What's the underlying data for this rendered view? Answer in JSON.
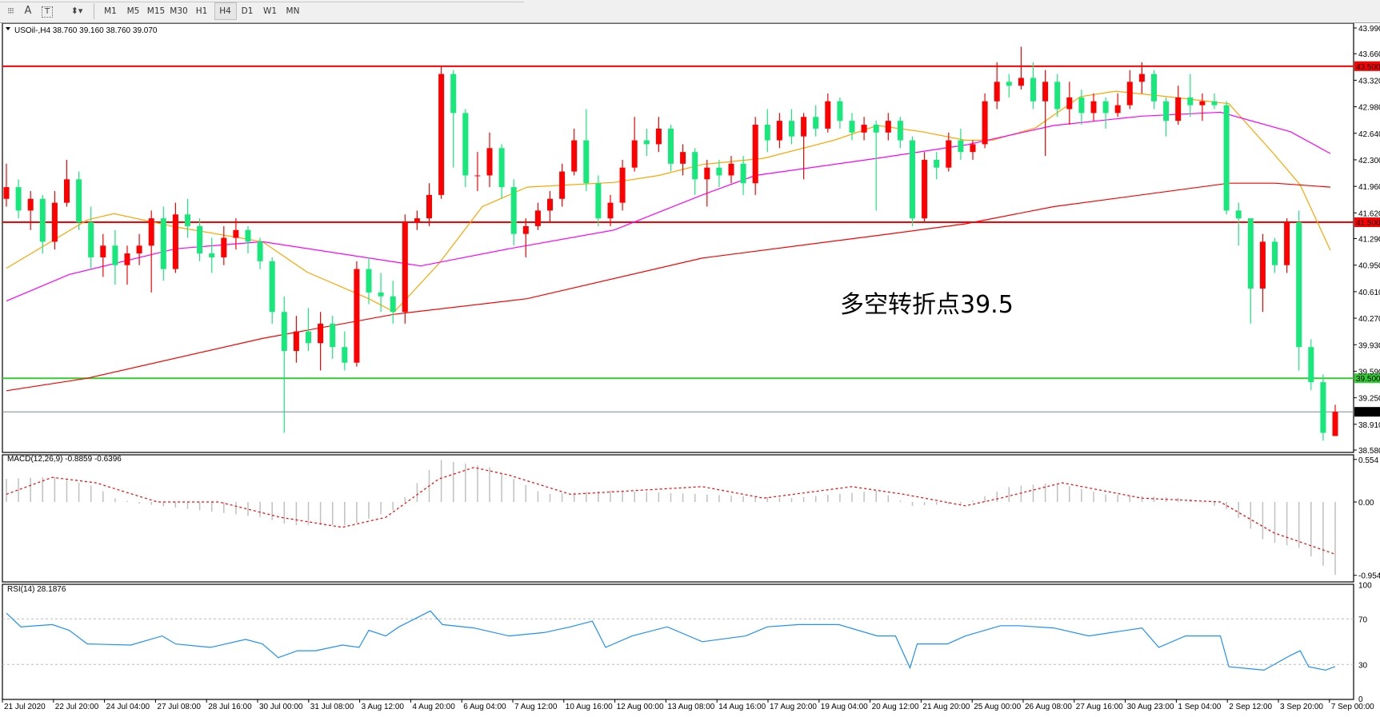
{
  "toolbar": {
    "icons": [
      "grid-icon",
      "text-a-icon",
      "text-label-icon",
      "arrows-icon"
    ],
    "timeframes": [
      "M1",
      "M5",
      "M15",
      "M30",
      "H1",
      "H4",
      "D1",
      "W1",
      "MN"
    ],
    "active_timeframe": "H4"
  },
  "main": {
    "title": "USOil-,H4  38.760 39.160 38.760 39.070",
    "annotation": "多空转折点39.5",
    "annotation_color": "#e8141e",
    "up_color": "#ff0000",
    "down_color": "#17e87c",
    "price_ticks": [
      "43.990",
      "43.660",
      "43.320",
      "42.980",
      "42.640",
      "42.300",
      "41.960",
      "41.620",
      "41.290",
      "40.950",
      "40.610",
      "40.270",
      "39.930",
      "39.590",
      "39.250",
      "38.910",
      "38.580"
    ],
    "hlines": [
      {
        "price": 43.5,
        "label": "43.500",
        "color": "#ff0000"
      },
      {
        "price": 41.5,
        "label": "41.500",
        "color": "#ff0000"
      },
      {
        "price": 39.5,
        "label": "39.500",
        "color": "#33cc33"
      },
      {
        "price": 39.07,
        "label": "39.070",
        "color": "#778899"
      }
    ]
  },
  "macd": {
    "title": "MACD(12,26,9) -0.8859 -0.6396",
    "ticks": [
      "0.554",
      "0.00",
      "-0.9545"
    ]
  },
  "rsi": {
    "title": "RSI(14) 28.1876",
    "ticks": [
      "100",
      "70",
      "30",
      "0"
    ]
  },
  "time_labels": [
    "21 Jul 2020",
    "22 Jul 20:00",
    "24 Jul 04:00",
    "27 Jul 08:00",
    "28 Jul 16:00",
    "30 Jul 00:00",
    "31 Jul 08:00",
    "3 Aug 12:00",
    "4 Aug 20:00",
    "6 Aug 04:00",
    "7 Aug 12:00",
    "10 Aug 16:00",
    "12 Aug 00:00",
    "13 Aug 08:00",
    "14 Aug 16:00",
    "17 Aug 20:00",
    "19 Aug 04:00",
    "20 Aug 12:00",
    "21 Aug 20:00",
    "25 Aug 00:00",
    "26 Aug 08:00",
    "27 Aug 16:00",
    "30 Aug 23:00",
    "1 Sep 04:00",
    "2 Sep 12:00",
    "3 Sep 20:00",
    "7 Sep 00:00"
  ],
  "chart_data": {
    "type": "candlestick",
    "symbol": "USOil-",
    "timeframe": "H4",
    "ylim": [
      38.58,
      43.99
    ],
    "ohlc": [
      [
        41.8,
        42.25,
        41.7,
        41.95
      ],
      [
        41.95,
        42.05,
        41.55,
        41.65
      ],
      [
        41.65,
        41.9,
        41.4,
        41.8
      ],
      [
        41.8,
        41.85,
        41.1,
        41.25
      ],
      [
        41.25,
        41.9,
        41.15,
        41.75
      ],
      [
        41.75,
        42.3,
        41.7,
        42.05
      ],
      [
        42.05,
        42.15,
        41.4,
        41.5
      ],
      [
        41.5,
        41.7,
        40.9,
        41.05
      ],
      [
        41.05,
        41.35,
        40.8,
        41.2
      ],
      [
        41.2,
        41.4,
        40.7,
        40.95
      ],
      [
        40.95,
        41.2,
        40.7,
        41.1
      ],
      [
        41.1,
        41.35,
        40.95,
        41.2
      ],
      [
        41.2,
        41.65,
        40.6,
        41.55
      ],
      [
        41.55,
        41.7,
        40.75,
        40.9
      ],
      [
        40.9,
        41.75,
        40.85,
        41.6
      ],
      [
        41.6,
        41.8,
        41.3,
        41.45
      ],
      [
        41.45,
        41.55,
        41.0,
        41.1
      ],
      [
        41.1,
        41.3,
        40.85,
        41.05
      ],
      [
        41.05,
        41.45,
        40.95,
        41.3
      ],
      [
        41.3,
        41.55,
        41.15,
        41.4
      ],
      [
        41.4,
        41.45,
        41.1,
        41.25
      ],
      [
        41.25,
        41.3,
        40.9,
        41.0
      ],
      [
        41.0,
        41.05,
        40.2,
        40.35
      ],
      [
        40.35,
        40.55,
        38.8,
        39.85
      ],
      [
        39.85,
        40.3,
        39.7,
        40.1
      ],
      [
        40.1,
        40.4,
        39.85,
        39.95
      ],
      [
        39.95,
        40.35,
        39.6,
        40.2
      ],
      [
        40.2,
        40.3,
        39.75,
        39.9
      ],
      [
        39.9,
        40.1,
        39.6,
        39.7
      ],
      [
        39.7,
        41.0,
        39.65,
        40.9
      ],
      [
        40.9,
        41.05,
        40.45,
        40.6
      ],
      [
        40.6,
        40.85,
        40.35,
        40.55
      ],
      [
        40.55,
        40.75,
        40.2,
        40.35
      ],
      [
        40.35,
        41.6,
        40.2,
        41.5
      ],
      [
        41.5,
        41.65,
        41.4,
        41.55
      ],
      [
        41.55,
        42.0,
        41.45,
        41.85
      ],
      [
        41.85,
        43.5,
        41.8,
        43.4
      ],
      [
        43.4,
        43.45,
        42.2,
        42.9
      ],
      [
        42.9,
        42.95,
        41.95,
        42.1
      ],
      [
        42.1,
        42.4,
        41.9,
        42.1
      ],
      [
        42.1,
        42.65,
        41.95,
        42.45
      ],
      [
        42.45,
        42.5,
        41.8,
        41.95
      ],
      [
        41.95,
        42.05,
        41.2,
        41.35
      ],
      [
        41.35,
        41.55,
        41.05,
        41.45
      ],
      [
        41.45,
        41.75,
        41.4,
        41.65
      ],
      [
        41.65,
        41.9,
        41.5,
        41.8
      ],
      [
        41.8,
        42.25,
        41.7,
        42.15
      ],
      [
        42.15,
        42.7,
        42.1,
        42.55
      ],
      [
        42.55,
        42.95,
        41.9,
        42.0
      ],
      [
        42.0,
        42.1,
        41.45,
        41.55
      ],
      [
        41.55,
        41.85,
        41.45,
        41.75
      ],
      [
        41.75,
        42.3,
        41.65,
        42.2
      ],
      [
        42.2,
        42.85,
        42.15,
        42.55
      ],
      [
        42.55,
        42.7,
        42.35,
        42.5
      ],
      [
        42.5,
        42.85,
        42.4,
        42.7
      ],
      [
        42.7,
        42.75,
        42.15,
        42.25
      ],
      [
        42.25,
        42.5,
        42.1,
        42.4
      ],
      [
        42.4,
        42.45,
        41.85,
        42.05
      ],
      [
        42.05,
        42.3,
        41.7,
        42.2
      ],
      [
        42.2,
        42.3,
        41.95,
        42.1
      ],
      [
        42.1,
        42.35,
        42.0,
        42.25
      ],
      [
        42.25,
        42.35,
        41.85,
        42.0
      ],
      [
        42.0,
        42.85,
        41.85,
        42.75
      ],
      [
        42.75,
        42.95,
        42.4,
        42.55
      ],
      [
        42.55,
        42.9,
        42.45,
        42.8
      ],
      [
        42.8,
        42.95,
        42.5,
        42.6
      ],
      [
        42.6,
        42.9,
        42.05,
        42.85
      ],
      [
        42.85,
        43.0,
        42.6,
        42.7
      ],
      [
        42.7,
        43.15,
        42.65,
        43.05
      ],
      [
        43.05,
        43.1,
        42.7,
        42.8
      ],
      [
        42.8,
        42.9,
        42.55,
        42.65
      ],
      [
        42.65,
        42.85,
        42.55,
        42.75
      ],
      [
        42.75,
        42.8,
        41.65,
        42.65
      ],
      [
        42.65,
        42.9,
        42.55,
        42.8
      ],
      [
        42.8,
        42.85,
        42.45,
        42.55
      ],
      [
        42.55,
        42.6,
        41.45,
        41.55
      ],
      [
        41.55,
        42.4,
        41.5,
        42.3
      ],
      [
        42.3,
        42.4,
        42.05,
        42.2
      ],
      [
        42.2,
        42.65,
        42.15,
        42.55
      ],
      [
        42.55,
        42.7,
        42.3,
        42.4
      ],
      [
        42.4,
        42.55,
        42.3,
        42.5
      ],
      [
        42.5,
        43.15,
        42.45,
        43.05
      ],
      [
        43.05,
        43.55,
        42.95,
        43.3
      ],
      [
        43.3,
        43.4,
        43.1,
        43.25
      ],
      [
        43.25,
        43.75,
        43.2,
        43.35
      ],
      [
        43.35,
        43.55,
        42.95,
        43.05
      ],
      [
        43.05,
        43.45,
        42.35,
        43.3
      ],
      [
        43.3,
        43.4,
        42.85,
        42.95
      ],
      [
        42.95,
        43.3,
        42.75,
        43.1
      ],
      [
        43.1,
        43.2,
        42.75,
        42.9
      ],
      [
        42.9,
        43.15,
        42.8,
        43.05
      ],
      [
        43.05,
        43.1,
        42.7,
        42.9
      ],
      [
        42.9,
        43.15,
        42.85,
        43.0
      ],
      [
        43.0,
        43.45,
        42.95,
        43.3
      ],
      [
        43.3,
        43.55,
        43.15,
        43.4
      ],
      [
        43.4,
        43.45,
        42.95,
        43.05
      ],
      [
        43.05,
        43.1,
        42.6,
        42.8
      ],
      [
        42.8,
        43.25,
        42.75,
        43.1
      ],
      [
        43.1,
        43.4,
        42.85,
        43.0
      ],
      [
        43.0,
        43.15,
        42.8,
        43.05
      ],
      [
        43.05,
        43.15,
        42.95,
        43.0
      ],
      [
        43.0,
        43.05,
        41.6,
        41.65
      ],
      [
        41.65,
        41.75,
        41.2,
        41.55
      ],
      [
        41.55,
        41.55,
        40.2,
        40.65
      ],
      [
        40.65,
        41.35,
        40.35,
        41.25
      ],
      [
        41.25,
        41.3,
        40.85,
        40.95
      ],
      [
        40.95,
        41.55,
        40.85,
        41.5
      ],
      [
        41.5,
        41.65,
        39.6,
        39.9
      ],
      [
        39.9,
        40.0,
        39.35,
        39.45
      ],
      [
        39.45,
        39.55,
        38.7,
        38.8
      ],
      [
        38.76,
        39.16,
        38.76,
        39.07
      ]
    ],
    "moving_averages": [
      {
        "color": "#ffa500",
        "points": [
          [
            0,
            40.91
          ],
          [
            6.7,
            41.53
          ],
          [
            8.9,
            41.61
          ],
          [
            14,
            41.44
          ],
          [
            21.2,
            41.25
          ],
          [
            24.9,
            40.86
          ],
          [
            30,
            40.52
          ],
          [
            32.1,
            40.35
          ],
          [
            35.8,
            40.97
          ],
          [
            39.4,
            41.7
          ],
          [
            43.1,
            41.95
          ],
          [
            50.3,
            42.01
          ],
          [
            54,
            42.1
          ],
          [
            57.6,
            42.24
          ],
          [
            62.7,
            42.32
          ],
          [
            68.5,
            42.55
          ],
          [
            72.1,
            42.74
          ],
          [
            75.8,
            42.66
          ],
          [
            79.4,
            42.55
          ],
          [
            81.6,
            42.55
          ],
          [
            85.2,
            42.71
          ],
          [
            88.9,
            43.11
          ],
          [
            91.8,
            43.18
          ],
          [
            96.1,
            43.11
          ],
          [
            101.2,
            43.02
          ],
          [
            104.9,
            42.38
          ],
          [
            107.1,
            41.98
          ],
          [
            109.6,
            41.14
          ]
        ]
      },
      {
        "color": "#ff00ff",
        "points": [
          [
            0,
            40.49
          ],
          [
            5.2,
            40.83
          ],
          [
            14,
            41.16
          ],
          [
            21.2,
            41.25
          ],
          [
            34.3,
            40.94
          ],
          [
            41.6,
            41.16
          ],
          [
            50.3,
            41.4
          ],
          [
            57.6,
            41.85
          ],
          [
            62,
            42.1
          ],
          [
            72.1,
            42.32
          ],
          [
            79.4,
            42.49
          ],
          [
            86.7,
            42.74
          ],
          [
            94,
            42.86
          ],
          [
            100.5,
            42.91
          ],
          [
            106.3,
            42.66
          ],
          [
            109.6,
            42.38
          ]
        ]
      },
      {
        "color": "#ff0000",
        "points": [
          [
            0,
            39.34
          ],
          [
            6.7,
            39.5
          ],
          [
            21.2,
            40.01
          ],
          [
            32.1,
            40.32
          ],
          [
            43.1,
            40.52
          ],
          [
            57.6,
            41.04
          ],
          [
            72.1,
            41.33
          ],
          [
            79.4,
            41.48
          ],
          [
            86.7,
            41.7
          ],
          [
            101.2,
            42.0
          ],
          [
            105,
            42.0
          ],
          [
            109.6,
            41.95
          ]
        ]
      }
    ],
    "macd": {
      "ylim": [
        -0.9545,
        0.554
      ],
      "histogram": [
        [
          0,
          0.3
        ],
        [
          3.8,
          0.33
        ],
        [
          7.4,
          0.2
        ],
        [
          8.9,
          0.05
        ],
        [
          11,
          -0.02
        ],
        [
          21.2,
          -0.2
        ],
        [
          23.4,
          -0.3
        ],
        [
          28.5,
          -0.3
        ],
        [
          32.1,
          -0.1
        ],
        [
          34.3,
          0.3
        ],
        [
          35.8,
          0.55
        ],
        [
          40.1,
          0.45
        ],
        [
          44.5,
          0.1
        ],
        [
          50.3,
          0.15
        ],
        [
          57.6,
          0.1
        ],
        [
          64.9,
          0.05
        ],
        [
          72.1,
          0.15
        ],
        [
          75,
          -0.05
        ],
        [
          79.4,
          -0.02
        ],
        [
          83.1,
          0.2
        ],
        [
          86.7,
          0.25
        ],
        [
          91,
          0.1
        ],
        [
          97.6,
          0.05
        ],
        [
          101.2,
          -0.1
        ],
        [
          104.1,
          -0.5
        ],
        [
          107.1,
          -0.6
        ],
        [
          110,
          -0.95
        ]
      ],
      "signal": [
        [
          0,
          0.1
        ],
        [
          3.8,
          0.32
        ],
        [
          7.4,
          0.25
        ],
        [
          12.5,
          0.0
        ],
        [
          17.6,
          0.0
        ],
        [
          22.7,
          -0.2
        ],
        [
          27.8,
          -0.33
        ],
        [
          31.4,
          -0.2
        ],
        [
          35.8,
          0.3
        ],
        [
          38.7,
          0.45
        ],
        [
          41.6,
          0.35
        ],
        [
          46.7,
          0.1
        ],
        [
          57.6,
          0.2
        ],
        [
          62.7,
          0.05
        ],
        [
          70,
          0.2
        ],
        [
          74.3,
          0.1
        ],
        [
          79.4,
          -0.05
        ],
        [
          82.3,
          0.05
        ],
        [
          87.4,
          0.25
        ],
        [
          94,
          0.05
        ],
        [
          100.5,
          0.0
        ],
        [
          104.9,
          -0.4
        ],
        [
          110,
          -0.68
        ]
      ],
      "hist_color": "#c0c0c0",
      "signal_color": "#ff0000"
    },
    "rsi": {
      "ylim": [
        0,
        100
      ],
      "levels": [
        70,
        30
      ],
      "color": "#1e90ff",
      "points": [
        [
          0,
          75
        ],
        [
          1.2,
          63
        ],
        [
          3.8,
          65
        ],
        [
          5.2,
          60
        ],
        [
          6.7,
          48
        ],
        [
          10.3,
          47
        ],
        [
          12.9,
          55
        ],
        [
          14,
          48
        ],
        [
          16.9,
          45
        ],
        [
          19.8,
          52
        ],
        [
          21.2,
          48
        ],
        [
          22.5,
          36
        ],
        [
          24.1,
          42
        ],
        [
          25.6,
          42
        ],
        [
          27.8,
          47
        ],
        [
          29.2,
          45
        ],
        [
          30,
          60
        ],
        [
          31.4,
          55
        ],
        [
          32.5,
          63
        ],
        [
          35.1,
          77
        ],
        [
          36.1,
          65
        ],
        [
          38.7,
          62
        ],
        [
          41.6,
          55
        ],
        [
          44.5,
          58
        ],
        [
          46.7,
          63
        ],
        [
          48.5,
          68
        ],
        [
          49.6,
          45
        ],
        [
          51.8,
          55
        ],
        [
          54.7,
          63
        ],
        [
          57.6,
          50
        ],
        [
          61.2,
          55
        ],
        [
          63,
          63
        ],
        [
          65.6,
          65
        ],
        [
          68.9,
          65
        ],
        [
          72.1,
          55
        ],
        [
          73.6,
          55
        ],
        [
          74.8,
          27
        ],
        [
          75.4,
          48
        ],
        [
          77.9,
          48
        ],
        [
          79.4,
          55
        ],
        [
          82.3,
          64
        ],
        [
          83.8,
          64
        ],
        [
          86.7,
          62
        ],
        [
          89.6,
          55
        ],
        [
          94,
          62
        ],
        [
          95.4,
          45
        ],
        [
          97.6,
          55
        ],
        [
          100.5,
          55
        ],
        [
          101.2,
          28
        ],
        [
          104.1,
          25
        ],
        [
          106.3,
          38
        ],
        [
          107.1,
          42
        ],
        [
          107.8,
          28
        ],
        [
          109.2,
          25
        ],
        [
          110,
          28.19
        ]
      ]
    }
  }
}
